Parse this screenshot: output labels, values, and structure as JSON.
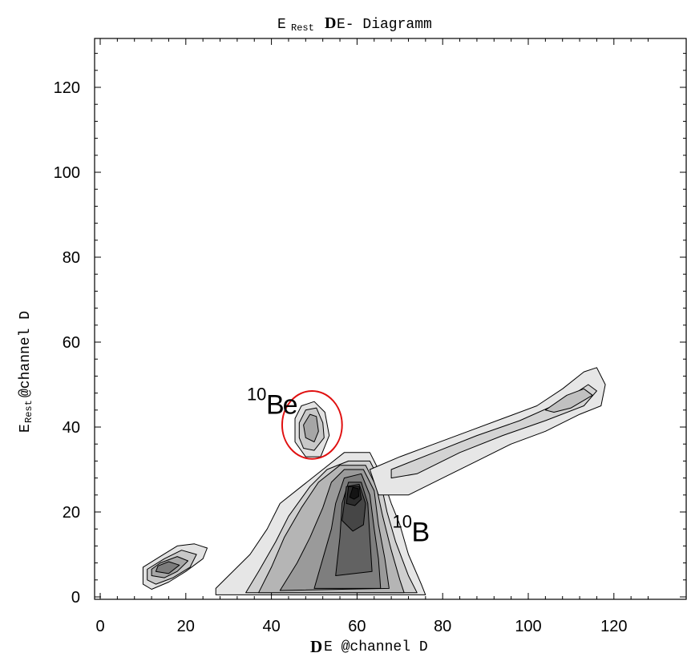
{
  "chart_data": {
    "type": "contour",
    "title": {
      "main": "E",
      "sub": "Rest",
      "delta": "D",
      "rest": "E- Diagramm"
    },
    "xlabel": {
      "delta": "D",
      "main": "E @channel D"
    },
    "ylabel": {
      "main": "E",
      "sub": "Rest",
      "rest": " @channel D"
    },
    "xlim": [
      -2,
      130
    ],
    "ylim": [
      -2,
      130
    ],
    "x_ticks": [
      0,
      20,
      40,
      60,
      80,
      100,
      120
    ],
    "y_ticks": [
      0,
      20,
      40,
      60,
      80,
      100,
      120
    ],
    "x_tick_labels": [
      "0",
      "20",
      "40",
      "60",
      "80",
      "100",
      "120"
    ],
    "y_tick_labels": [
      "0",
      "20",
      "40",
      "60",
      "80",
      "100",
      "120"
    ],
    "annotations": [
      {
        "sup": "10",
        "text": "Be",
        "x": 41,
        "y": 45
      },
      {
        "sup": "10",
        "text": "B",
        "x": 75,
        "y": 15
      }
    ],
    "highlight_ellipse": {
      "cx": 49.5,
      "cy": 40.5,
      "rx": 7,
      "ry": 8,
      "color": "#e01010"
    },
    "regions": [
      {
        "name": "low-energy-blob",
        "levels": [
          {
            "fill": "#e2e2e2",
            "points": [
              [
                10,
                3
              ],
              [
                12,
                1.8
              ],
              [
                16,
                3.5
              ],
              [
                20,
                6
              ],
              [
                24,
                9
              ],
              [
                25,
                11.5
              ],
              [
                22,
                12.5
              ],
              [
                18,
                12
              ],
              [
                14,
                9.5
              ],
              [
                10,
                7
              ]
            ]
          },
          {
            "fill": "#c8c8c8",
            "points": [
              [
                11,
                4
              ],
              [
                13,
                3
              ],
              [
                17,
                4.5
              ],
              [
                21,
                7
              ],
              [
                22.5,
                10
              ],
              [
                19,
                11
              ],
              [
                15,
                9
              ],
              [
                11,
                6.5
              ]
            ]
          },
          {
            "fill": "#a6a6a6",
            "points": [
              [
                12,
                5
              ],
              [
                15,
                4.5
              ],
              [
                18,
                6
              ],
              [
                20.5,
                8.5
              ],
              [
                18,
                9.5
              ],
              [
                14,
                8
              ],
              [
                12,
                6.5
              ]
            ]
          },
          {
            "fill": "#7c7c7c",
            "points": [
              [
                13,
                6
              ],
              [
                16,
                5.5
              ],
              [
                18.5,
                7.5
              ],
              [
                16,
                8.3
              ],
              [
                13.5,
                7.3
              ]
            ]
          }
        ]
      },
      {
        "name": "10Be-cluster",
        "levels": [
          {
            "fill": "#e2e2e2",
            "points": [
              [
                45.5,
                42
              ],
              [
                47,
                45
              ],
              [
                50,
                46
              ],
              [
                52.5,
                43.5
              ],
              [
                53.5,
                38
              ],
              [
                51.5,
                33
              ],
              [
                48,
                33
              ],
              [
                45.5,
                36.5
              ]
            ]
          },
          {
            "fill": "#c8c8c8",
            "points": [
              [
                46.5,
                41
              ],
              [
                48,
                44
              ],
              [
                50.5,
                44.5
              ],
              [
                52,
                41
              ],
              [
                52.3,
                37.5
              ],
              [
                50,
                34.5
              ],
              [
                47.5,
                35
              ],
              [
                46.5,
                37.5
              ]
            ]
          },
          {
            "fill": "#a6a6a6",
            "points": [
              [
                47.5,
                40.5
              ],
              [
                49,
                43
              ],
              [
                50.5,
                42.5
              ],
              [
                51,
                39
              ],
              [
                50,
                36.5
              ],
              [
                48,
                37.5
              ]
            ]
          }
        ]
      },
      {
        "name": "10B-main-peak",
        "levels": [
          {
            "fill": "#e6e6e6",
            "points": [
              [
                27,
                2
              ],
              [
                30,
                5
              ],
              [
                35,
                10
              ],
              [
                39,
                16
              ],
              [
                42,
                22
              ],
              [
                47,
                26
              ],
              [
                52,
                30
              ],
              [
                57,
                34
              ],
              [
                63,
                34
              ],
              [
                66,
                28
              ],
              [
                68,
                22
              ],
              [
                70,
                17
              ],
              [
                72,
                10
              ],
              [
                75,
                3
              ],
              [
                76,
                0.5
              ],
              [
                27,
                0.5
              ]
            ]
          },
          {
            "fill": "#cfcfcf",
            "points": [
              [
                34,
                1
              ],
              [
                37,
                6
              ],
              [
                41,
                13
              ],
              [
                44,
                19
              ],
              [
                49,
                26
              ],
              [
                53,
                30
              ],
              [
                58,
                32
              ],
              [
                63,
                32
              ],
              [
                65.5,
                27
              ],
              [
                67,
                20
              ],
              [
                69,
                13
              ],
              [
                72,
                5
              ],
              [
                74,
                1
              ]
            ]
          },
          {
            "fill": "#b5b5b5",
            "points": [
              [
                37,
                1
              ],
              [
                40,
                7
              ],
              [
                43,
                14
              ],
              [
                47,
                21
              ],
              [
                51,
                27
              ],
              [
                56,
                31
              ],
              [
                62,
                31
              ],
              [
                64.5,
                26
              ],
              [
                66,
                19
              ],
              [
                68,
                11
              ],
              [
                70,
                4
              ],
              [
                71,
                1
              ]
            ]
          },
          {
            "fill": "#9a9a9a",
            "points": [
              [
                42,
                1.5
              ],
              [
                46,
                8
              ],
              [
                49,
                14
              ],
              [
                52,
                21
              ],
              [
                54,
                27
              ],
              [
                57,
                30
              ],
              [
                61.5,
                30
              ],
              [
                64,
                25
              ],
              [
                65,
                17
              ],
              [
                66.5,
                9
              ],
              [
                67.5,
                2
              ]
            ]
          },
          {
            "fill": "#7e7e7e",
            "points": [
              [
                50,
                2
              ],
              [
                52,
                9
              ],
              [
                54,
                16
              ],
              [
                55,
                22
              ],
              [
                57,
                28
              ],
              [
                61,
                29
              ],
              [
                63,
                24
              ],
              [
                64,
                16
              ],
              [
                65,
                9
              ],
              [
                65.5,
                2
              ]
            ]
          },
          {
            "fill": "#626262",
            "points": [
              [
                55,
                5
              ],
              [
                56,
                14
              ],
              [
                56.5,
                22
              ],
              [
                58,
                27
              ],
              [
                61,
                27
              ],
              [
                62.5,
                22
              ],
              [
                63,
                14
              ],
              [
                63.5,
                6
              ]
            ]
          },
          {
            "fill": "#464646",
            "points": [
              [
                56.5,
                18
              ],
              [
                57.5,
                26
              ],
              [
                60.5,
                26.5
              ],
              [
                62,
                22
              ],
              [
                61.5,
                17
              ],
              [
                59,
                15.5
              ]
            ]
          },
          {
            "fill": "#2c2c2c",
            "points": [
              [
                57.5,
                22
              ],
              [
                58,
                26
              ],
              [
                60.5,
                26
              ],
              [
                61,
                23
              ],
              [
                59.5,
                21.5
              ]
            ]
          },
          {
            "fill": "#141414",
            "points": [
              [
                58.3,
                23.5
              ],
              [
                59,
                25.8
              ],
              [
                60.3,
                25.5
              ],
              [
                60.4,
                23.7
              ],
              [
                59.3,
                23
              ]
            ]
          }
        ]
      },
      {
        "name": "diagonal-band",
        "levels": [
          {
            "fill": "#e6e6e6",
            "points": [
              [
                63,
                30
              ],
              [
                70,
                33
              ],
              [
                78,
                36
              ],
              [
                86,
                39
              ],
              [
                94,
                42
              ],
              [
                102,
                45
              ],
              [
                108,
                49
              ],
              [
                113,
                53
              ],
              [
                116,
                54
              ],
              [
                118,
                50
              ],
              [
                117,
                45
              ],
              [
                112,
                43
              ],
              [
                104,
                39
              ],
              [
                96,
                36
              ],
              [
                88,
                32
              ],
              [
                80,
                28
              ],
              [
                72,
                24
              ],
              [
                65,
                24
              ]
            ]
          },
          {
            "fill": "#d3d3d3",
            "points": [
              [
                68,
                30
              ],
              [
                78,
                34
              ],
              [
                88,
                38
              ],
              [
                98,
                41.5
              ],
              [
                108,
                46
              ],
              [
                114,
                50
              ],
              [
                116,
                48.5
              ],
              [
                113,
                45
              ],
              [
                104,
                41.5
              ],
              [
                94,
                38
              ],
              [
                84,
                34
              ],
              [
                74,
                29
              ],
              [
                68,
                28
              ]
            ]
          },
          {
            "fill": "#c0c0c0",
            "points": [
              [
                104,
                44
              ],
              [
                109,
                47.5
              ],
              [
                113,
                49
              ],
              [
                115,
                47.5
              ],
              [
                110,
                44.5
              ],
              [
                106,
                43.5
              ]
            ]
          }
        ]
      }
    ]
  }
}
